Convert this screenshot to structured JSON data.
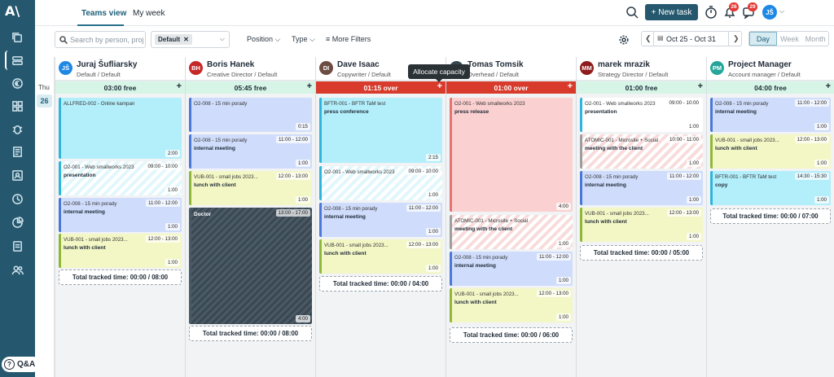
{
  "app": {
    "logo": "A\\"
  },
  "sidebar": {
    "items": [
      {
        "icon": "copy-icon"
      },
      {
        "icon": "schedule-icon",
        "active": true
      },
      {
        "icon": "euro-icon"
      },
      {
        "icon": "grid-icon"
      },
      {
        "icon": "bug-icon"
      },
      {
        "icon": "invoice-icon"
      },
      {
        "icon": "contact-icon"
      },
      {
        "icon": "clock-icon"
      },
      {
        "icon": "chart-icon"
      },
      {
        "icon": "document-icon"
      },
      {
        "icon": "people-icon"
      }
    ]
  },
  "qa_label": "Q&A",
  "header": {
    "tabs": [
      "Teams view",
      "My week"
    ],
    "new_task": "+ New task",
    "badges": {
      "notifications": "26",
      "messages": "29"
    },
    "user_initials": "JŠ"
  },
  "filters": {
    "search_placeholder": "Search by person, proj",
    "chip": "Default",
    "position": "Position",
    "type": "Type",
    "more": "More Filters",
    "date_range": "Oct 25 - Oct 31",
    "views": [
      "Day",
      "Week",
      "Month"
    ],
    "active_view": "Day"
  },
  "day": {
    "name": "Thu",
    "number": "26"
  },
  "tooltip": "Allocate capacity",
  "people": [
    {
      "initials": "JŠ",
      "name": "Juraj Šufliarsky",
      "role": "Default / Default",
      "color": "#1e88e5",
      "capacity": "03:00 free",
      "over": false,
      "tasks": [
        {
          "code": "ALLFRED-002 - Online kampan",
          "title": "",
          "time": "",
          "dur": "2:00",
          "style": "t-cyan"
        },
        {
          "code": "O2-001 - Web smallworks 2023",
          "title": "presentation",
          "time": "09:00 - 10:00",
          "dur": "1:00",
          "style": "stripe-cyan"
        },
        {
          "code": "O2-008 - 15 min porady",
          "title": "internal meeting",
          "time": "11:00 - 12:00",
          "dur": "1:00",
          "style": "t-blue"
        },
        {
          "code": "VUB-001 - small jobs 2023...",
          "title": "lunch with client",
          "time": "12:00 - 13:00",
          "dur": "1:00",
          "style": "t-yellow"
        }
      ],
      "total": "Total tracked time: 00:00 / 08:00"
    },
    {
      "initials": "BH",
      "name": "Boris Hanek",
      "role": "Creative Director / Default",
      "color": "#c62828",
      "capacity": "05:45 free",
      "over": false,
      "tasks": [
        {
          "code": "O2-008 - 15 min porady",
          "title": "",
          "time": "",
          "dur": "0:15",
          "style": "t-blue"
        },
        {
          "code": "O2-008 - 15 min porady",
          "title": "internal meeting",
          "time": "11:00 - 12:00",
          "dur": "1:00",
          "style": "t-blue"
        },
        {
          "code": "VUB-001 - small jobs 2023...",
          "title": "lunch with client",
          "time": "12:00 - 13:00",
          "dur": "1:00",
          "style": "t-yellow"
        },
        {
          "code": "",
          "title": "Doctor",
          "time": "13:00 - 17:00",
          "dur": "4:00",
          "style": "t-dark"
        }
      ],
      "total": "Total tracked time: 00:00 / 08:00"
    },
    {
      "initials": "DI",
      "name": "Dave Isaac",
      "role": "Copywriter / Default",
      "color": "#6d4c41",
      "capacity": "01:15 over",
      "over": true,
      "tasks": [
        {
          "code": "BFTR-001 - BFTR TaM test",
          "title": "press conference",
          "time": "",
          "dur": "2:15",
          "style": "t-cyan"
        },
        {
          "code": "O2-001 - Web smallworks 2023",
          "title": "",
          "time": "09:00 - 10:00",
          "dur": "1:00",
          "style": "stripe-cyan"
        },
        {
          "code": "O2-008 - 15 min porady",
          "title": "internal meeting",
          "time": "11:00 - 12:00",
          "dur": "1:00",
          "style": "t-blue"
        },
        {
          "code": "VUB-001 - small jobs 2023...",
          "title": "lunch with client",
          "time": "12:00 - 13:00",
          "dur": "1:00",
          "style": "t-yellow"
        }
      ],
      "total": "Total tracked time: 00:00 / 04:00"
    },
    {
      "initials": "TT",
      "name": "Tomas Tomsik",
      "role": "Overhead / Default",
      "color": "#37474f",
      "capacity": "01:00 over",
      "over": true,
      "tasks": [
        {
          "code": "O2-001 - Web smallworks 2023",
          "title": "press release",
          "time": "",
          "dur": "4:00",
          "style": "t-red"
        },
        {
          "code": "ATOMIC-001 - Microsite + Social",
          "title": "meeting with the client",
          "time": "",
          "dur": "1:00",
          "style": "stripe-red"
        },
        {
          "code": "O2-008 - 15 min porady",
          "title": "internal meeting",
          "time": "11:00 - 12:00",
          "dur": "1:00",
          "style": "t-blue"
        },
        {
          "code": "VUB-001 - small jobs 2023...",
          "title": "lunch with client",
          "time": "12:00 - 13:00",
          "dur": "1:00",
          "style": "t-yellow"
        }
      ],
      "total": "Total tracked time: 00:00 / 06:00"
    },
    {
      "initials": "MM",
      "name": "marek mrazik",
      "role": "Strategy Director / Default",
      "color": "#8e1c1c",
      "capacity": "01:00 free",
      "over": false,
      "tasks": [
        {
          "code": "O2-001 - Web smallworks 2023",
          "title": "presentation",
          "time": "09:00 - 10:00",
          "dur": "1:00",
          "style": "t-white"
        },
        {
          "code": "ATOMIC-001 - Microsite + Social",
          "title": "meeting with the client",
          "time": "10:00 - 11:00",
          "dur": "1:00",
          "style": "stripe-red"
        },
        {
          "code": "O2-008 - 15 min porady",
          "title": "internal meeting",
          "time": "11:00 - 12:00",
          "dur": "1:00",
          "style": "t-blue"
        },
        {
          "code": "VUB-001 - small jobs 2023...",
          "title": "lunch with client",
          "time": "12:00 - 13:00",
          "dur": "1:00",
          "style": "t-yellow"
        }
      ],
      "total": "Total tracked time: 00:00 / 05:00"
    },
    {
      "initials": "PM",
      "name": "Project Manager",
      "role": "Account manager / Default",
      "color": "#26a69a",
      "capacity": "04:00 free",
      "over": false,
      "tasks": [
        {
          "code": "O2-008 - 15 min porady",
          "title": "internal meeting",
          "time": "11:00 - 12:00",
          "dur": "1:00",
          "style": "t-blue"
        },
        {
          "code": "VUB-001 - small jobs 2023...",
          "title": "lunch with client",
          "time": "12:00 - 13:00",
          "dur": "1:00",
          "style": "t-yellow"
        },
        {
          "code": "BFTR-001 - BFTR TaM test",
          "title": "copy",
          "time": "14:30 - 15:30",
          "dur": "1:00",
          "style": "t-cyan"
        }
      ],
      "total": "Total tracked time: 00:00 / 07:00"
    }
  ]
}
